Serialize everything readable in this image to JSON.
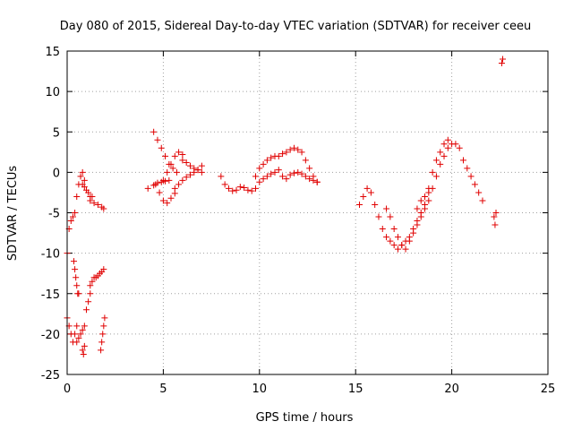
{
  "chart_data": {
    "type": "scatter",
    "title": "Day 080 of 2015, Sidereal Day-to-day VTEC variation (SDTVAR) for receiver ceeu",
    "xlabel": "GPS time / hours",
    "ylabel": "SDTVAR / TECUs",
    "xlim": [
      0,
      25
    ],
    "ylim": [
      -25,
      15
    ],
    "xticks": [
      0,
      5,
      10,
      15,
      20,
      25
    ],
    "yticks": [
      -25,
      -20,
      -15,
      -10,
      -5,
      0,
      5,
      10,
      15
    ],
    "grid": true,
    "marker": "plus",
    "color": "#e00000",
    "series": [
      {
        "name": "segment-1",
        "x": [
          0.0,
          0.1,
          0.2,
          0.3,
          0.4,
          0.5,
          0.6,
          0.7,
          0.8,
          0.9
        ],
        "y": [
          -10,
          -7,
          -6,
          -5.5,
          -5,
          -3,
          -1.5,
          -0.5,
          0,
          -1
        ]
      },
      {
        "name": "segment-2",
        "x": [
          0.0,
          0.1,
          0.2,
          0.3,
          0.4,
          0.5
        ],
        "y": [
          -18,
          -19,
          -20,
          -21,
          -20,
          -19
        ]
      },
      {
        "name": "segment-3",
        "x": [
          0.35,
          0.4,
          0.45,
          0.5,
          0.55,
          0.6
        ],
        "y": [
          -11,
          -12,
          -13,
          -14,
          -15,
          -15
        ]
      },
      {
        "name": "segment-4",
        "x": [
          0.5,
          0.6,
          0.7,
          0.8,
          0.9,
          1.0,
          1.1,
          1.2
        ],
        "y": [
          -21,
          -20.5,
          -20,
          -19.5,
          -19,
          -17,
          -16,
          -15
        ]
      },
      {
        "name": "segment-5",
        "x": [
          0.8,
          0.85,
          0.9
        ],
        "y": [
          -22,
          -22.5,
          -21.5
        ]
      },
      {
        "name": "segment-6",
        "x": [
          0.8,
          0.9,
          1.0,
          1.1,
          1.2,
          1.3
        ],
        "y": [
          -1.5,
          -1.8,
          -2.2,
          -2.5,
          -3,
          -3
        ]
      },
      {
        "name": "segment-7",
        "x": [
          1.2,
          1.4,
          1.6,
          1.8,
          1.9
        ],
        "y": [
          -3.5,
          -3.8,
          -4,
          -4.3,
          -4.5
        ]
      },
      {
        "name": "segment-8",
        "x": [
          1.2,
          1.3,
          1.4,
          1.5,
          1.6,
          1.7,
          1.8,
          1.9
        ],
        "y": [
          -14,
          -13.5,
          -13,
          -13,
          -12.8,
          -12.5,
          -12.3,
          -12
        ]
      },
      {
        "name": "segment-9",
        "x": [
          1.75,
          1.8,
          1.85,
          1.9,
          1.95
        ],
        "y": [
          -22,
          -21,
          -20,
          -19,
          -18
        ]
      },
      {
        "name": "segment-10",
        "x": [
          4.2,
          4.5,
          4.7,
          4.9,
          5.1,
          5.3
        ],
        "y": [
          -2,
          -1.6,
          -1.3,
          -1.2,
          -1.1,
          -1
        ]
      },
      {
        "name": "segment-11",
        "x": [
          4.5,
          4.7,
          4.9,
          5.1,
          5.3,
          5.5,
          5.7
        ],
        "y": [
          5,
          4,
          3,
          2,
          1,
          0.5,
          0
        ]
      },
      {
        "name": "segment-12",
        "x": [
          4.6,
          4.8,
          5.0,
          5.2,
          5.4,
          5.6
        ],
        "y": [
          -1.5,
          -2.5,
          -3.5,
          -3.8,
          -3.2,
          -2.6
        ]
      },
      {
        "name": "segment-13",
        "x": [
          5.0,
          5.2,
          5.4,
          5.6,
          5.8,
          6.0
        ],
        "y": [
          -1,
          0,
          1,
          2,
          2.5,
          2.2
        ]
      },
      {
        "name": "segment-14",
        "x": [
          5.6,
          5.8,
          6.0,
          6.2,
          6.4,
          6.6,
          6.8,
          7.0
        ],
        "y": [
          -2,
          -1.5,
          -1,
          -0.6,
          -0.3,
          0,
          0.3,
          0.8
        ]
      },
      {
        "name": "segment-15",
        "x": [
          6.0,
          6.2,
          6.4,
          6.6,
          6.8,
          7.0
        ],
        "y": [
          1.5,
          1.2,
          0.8,
          0.5,
          0.3,
          0
        ]
      },
      {
        "name": "segment-16",
        "x": [
          8.0,
          8.2,
          8.4,
          8.6,
          8.8,
          9.0,
          9.2,
          9.4,
          9.6,
          9.8,
          10.0,
          10.2,
          10.4,
          10.6,
          10.8,
          11.0,
          11.2,
          11.4,
          11.6,
          11.8,
          12.0,
          12.2,
          12.4,
          12.6,
          12.8,
          13.0
        ],
        "y": [
          -0.5,
          -1.5,
          -2,
          -2.3,
          -2.2,
          -1.8,
          -1.9,
          -2.2,
          -2.3,
          -2,
          -1.2,
          -0.8,
          -0.5,
          -0.2,
          0,
          0.3,
          -0.5,
          -0.8,
          -0.3,
          -0.1,
          0,
          -0.2,
          -0.5,
          -0.8,
          -1,
          -1.2
        ]
      },
      {
        "name": "segment-17",
        "x": [
          9.8,
          10.0,
          10.2,
          10.4,
          10.6,
          10.8,
          11.0,
          11.2,
          11.4,
          11.6,
          11.8,
          12.0,
          12.2,
          12.4,
          12.6,
          12.8,
          13.0
        ],
        "y": [
          -0.5,
          0.5,
          1,
          1.5,
          1.8,
          2,
          2,
          2.3,
          2.5,
          2.8,
          3,
          2.8,
          2.5,
          1.5,
          0.5,
          -0.5,
          -1.2
        ]
      },
      {
        "name": "segment-18",
        "x": [
          15.2,
          15.4,
          15.6,
          15.8,
          16.0,
          16.2,
          16.4,
          16.6,
          16.8,
          17.0,
          17.2,
          17.4,
          17.6,
          17.8,
          18.0,
          18.2,
          18.4,
          18.6,
          18.8,
          19.0,
          19.2,
          19.4,
          19.6,
          19.8
        ],
        "y": [
          -4,
          -3,
          -2,
          -2.5,
          -4,
          -5.5,
          -7,
          -8,
          -8.5,
          -9,
          -9.5,
          -9,
          -8.5,
          -8,
          -7,
          -6,
          -5,
          -4,
          -2,
          0,
          1.5,
          2.5,
          3.5,
          4
        ]
      },
      {
        "name": "segment-19",
        "x": [
          16.6,
          16.8,
          17.0,
          17.2,
          17.4,
          17.6,
          17.8,
          18.0,
          18.2,
          18.4,
          18.6,
          18.8,
          19.0,
          19.2,
          19.4,
          19.6,
          19.8,
          20.0,
          20.2,
          20.4,
          20.6,
          20.8,
          21.0,
          21.2,
          21.4,
          21.6
        ],
        "y": [
          -4.5,
          -5.5,
          -7,
          -8,
          -9,
          -9.5,
          -8.5,
          -7.5,
          -6.5,
          -5.5,
          -4.5,
          -3.5,
          -2,
          -0.5,
          1,
          2,
          3,
          3.5,
          3.5,
          3,
          1.5,
          0.5,
          -0.5,
          -1.5,
          -2.5,
          -3.5
        ]
      },
      {
        "name": "segment-20",
        "x": [
          18.2,
          18.4,
          18.6,
          18.8
        ],
        "y": [
          -4.5,
          -3.5,
          -3,
          -2.5
        ]
      },
      {
        "name": "segment-21",
        "x": [
          22.2,
          22.25,
          22.3
        ],
        "y": [
          -5.5,
          -6.5,
          -5
        ]
      },
      {
        "name": "segment-22",
        "x": [
          22.6,
          22.65
        ],
        "y": [
          13.5,
          14
        ]
      }
    ]
  }
}
